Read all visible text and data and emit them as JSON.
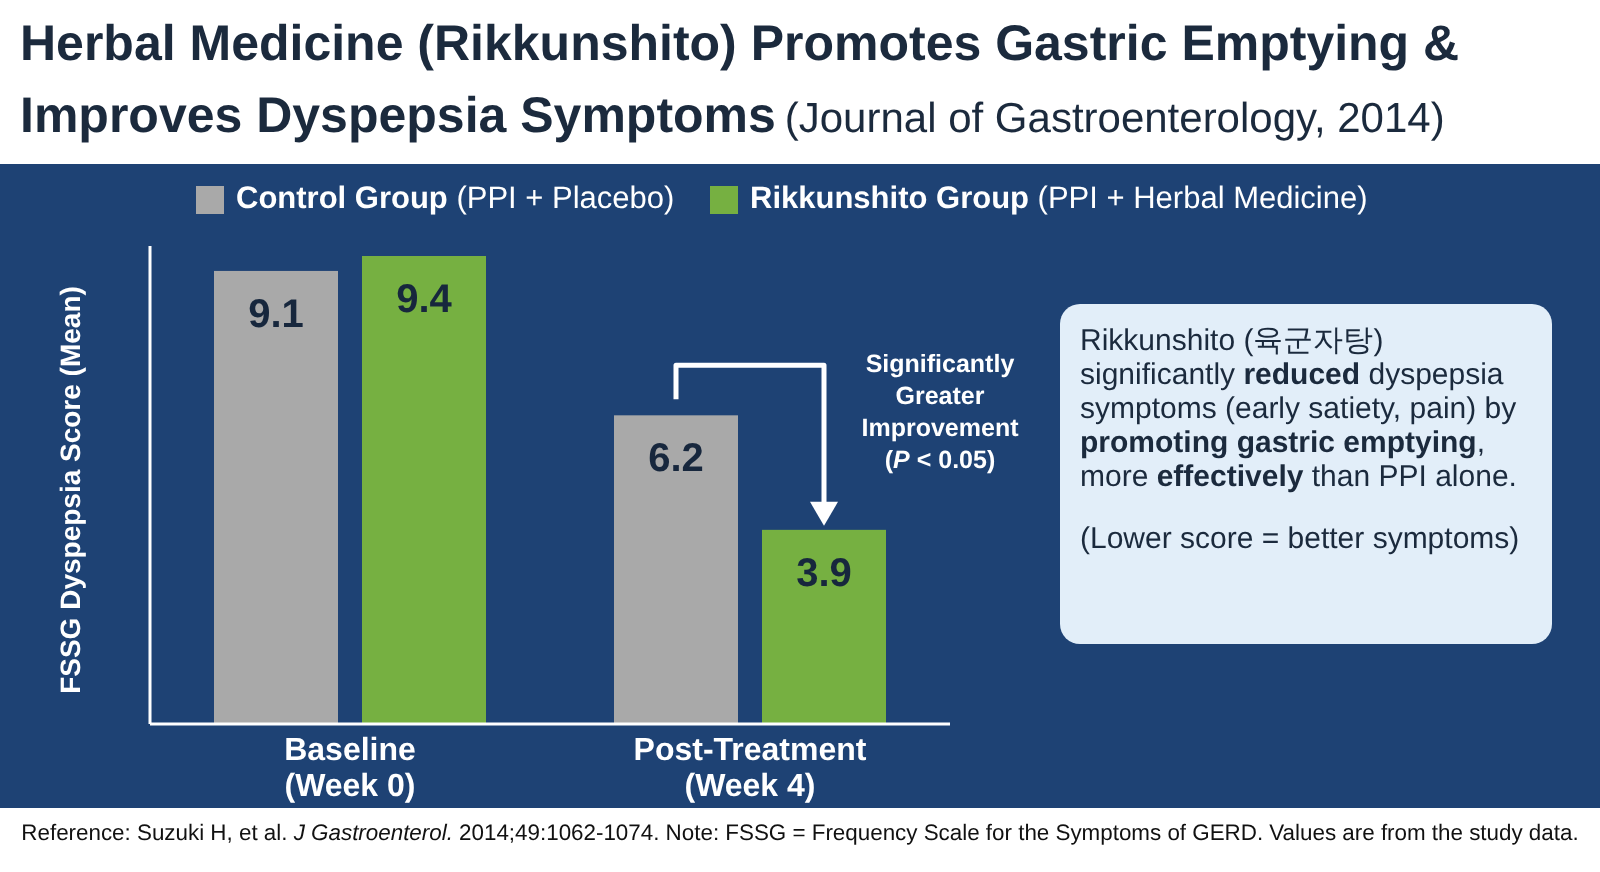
{
  "chart_data": {
    "type": "bar",
    "title": "Herbal Medicine (Rikkunshito) Promotes Gastric Emptying & Improves Dyspepsia Symptoms",
    "subtitle": "(Journal of Gastroenterology, 2014)",
    "ylabel": "FSSG Dyspepsia Score (Mean)",
    "categories": [
      "Baseline\n(Week 0)",
      "Post-Treatment\n(Week 4)"
    ],
    "series": [
      {
        "name": "**Control Group** (PPI + Placebo)",
        "color": "#a9a9a9",
        "values": [
          9.1,
          6.2
        ]
      },
      {
        "name": "**Rikkunshito Group** (PPI + Herbal Medicine)",
        "color": "#76b041",
        "values": [
          9.4,
          3.9
        ]
      }
    ],
    "data_labels": true,
    "legend": "top",
    "annotations": [
      "Significantly Greater Improvement (*P* < 0.05)",
      "Rikkunshito (육군자탕) significantly **reduced** dyspepsia symptoms (early satiety, pain) by **promoting gastric emptying**, more **effectively** than PPI alone.",
      "(Lower score = better symptoms)",
      "Reference: Suzuki H, et al. *J Gastroenterol.* 2014;49:1062-1074. Note: FSSG = Frequency Scale for the Symptoms of GERD. Values are from the study data."
    ]
  }
}
